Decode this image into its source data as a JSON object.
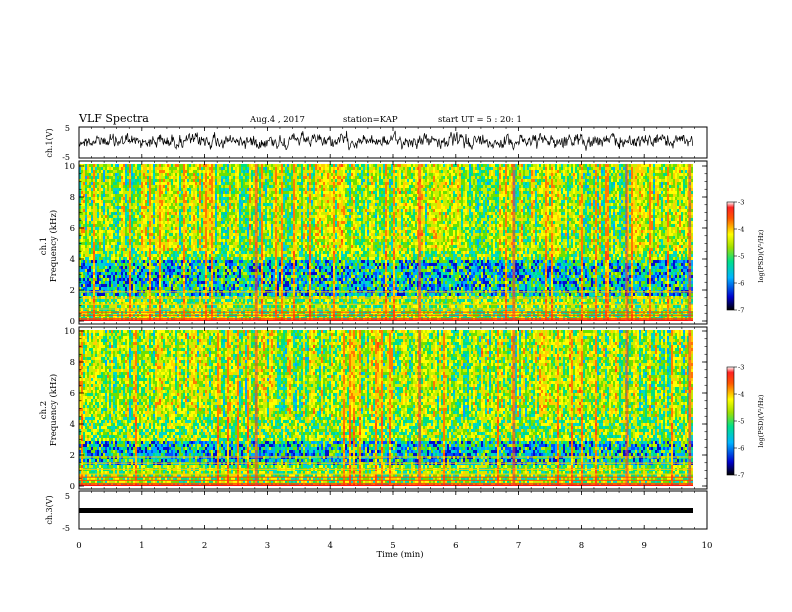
{
  "header": {
    "title": "VLF Spectra",
    "date": "Aug.4 , 2017",
    "station": "station=KAP",
    "start": "start UT = 5 : 20: 1"
  },
  "chart_data": {
    "type": "heatmap",
    "panels": [
      {
        "name": "ch.1(V)",
        "kind": "waveform",
        "ylabel": "ch.1(V)",
        "yticks": [
          "5",
          "-5"
        ],
        "ylim": [
          -5,
          5
        ]
      },
      {
        "name": "ch.1",
        "kind": "spectrogram",
        "ylabel": "ch.1\nFrequency (kHz)",
        "ylim": [
          0,
          10
        ],
        "yticks": [
          "0",
          "2",
          "4",
          "6",
          "8",
          "10"
        ],
        "colorbar": {
          "label": "log(PSD)(V²/Hz)",
          "range": [
            -7,
            -3
          ],
          "ticks": [
            "-3",
            "-4",
            "-5",
            "-6",
            "-7"
          ]
        }
      },
      {
        "name": "ch.2",
        "kind": "spectrogram",
        "ylabel": "ch.2\nFrequency (kHz)",
        "ylim": [
          0,
          10
        ],
        "yticks": [
          "0",
          "2",
          "4",
          "6",
          "8",
          "10"
        ],
        "colorbar": {
          "label": "log(PSD)(V²/Hz)",
          "range": [
            -7,
            -3
          ],
          "ticks": [
            "-3",
            "-4",
            "-5",
            "-6",
            "-7"
          ]
        }
      },
      {
        "name": "ch.3(V)",
        "kind": "waveform",
        "ylabel": "ch.3(V)",
        "yticks": [
          "5",
          "-5"
        ],
        "ylim": [
          -5,
          5
        ]
      }
    ],
    "x": {
      "label": "Time (min)",
      "lim": [
        0,
        10
      ],
      "ticks": [
        "0",
        "1",
        "2",
        "3",
        "4",
        "5",
        "6",
        "7",
        "8",
        "9",
        "10"
      ]
    }
  }
}
